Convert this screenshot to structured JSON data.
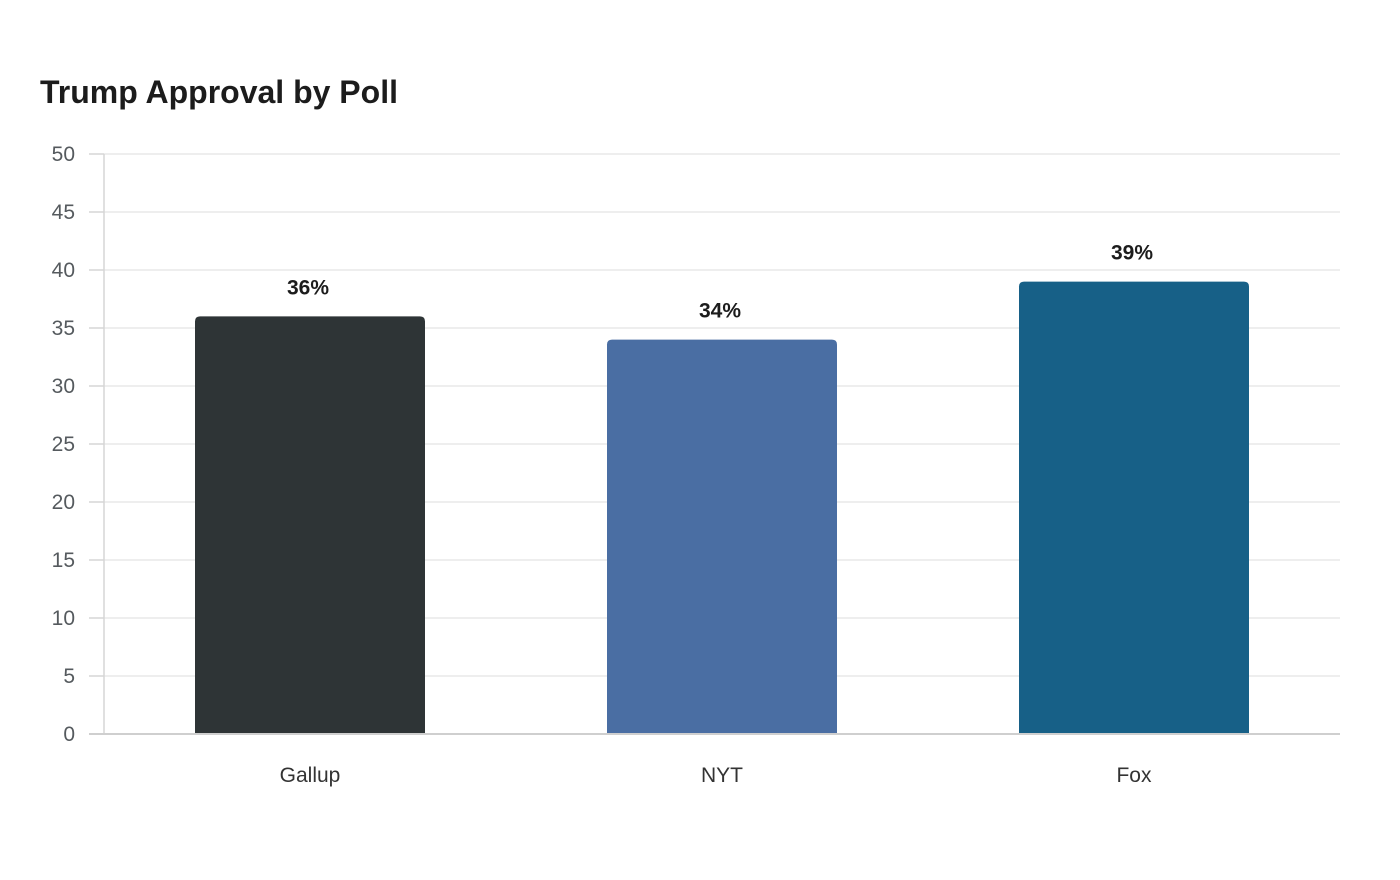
{
  "chart_data": {
    "type": "bar",
    "title": "Trump Approval by Poll",
    "categories": [
      "Gallup",
      "NYT",
      "Fox"
    ],
    "values": [
      36,
      34,
      39
    ],
    "value_labels": [
      "36%",
      "34%",
      "39%"
    ],
    "colors": [
      "#2e3436",
      "#4a6ea3",
      "#176087"
    ],
    "xlabel": "",
    "ylabel": "",
    "ylim": [
      0,
      50
    ],
    "yticks": [
      0,
      5,
      10,
      15,
      20,
      25,
      30,
      35,
      40,
      45,
      50
    ],
    "grid": true,
    "legend": "none"
  }
}
